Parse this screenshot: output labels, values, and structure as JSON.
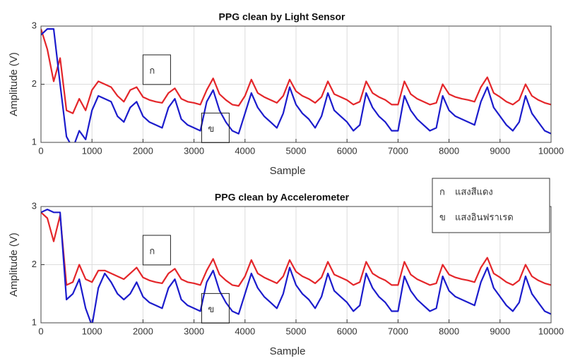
{
  "chart_data": [
    {
      "type": "line",
      "title": "PPG clean by Light Sensor",
      "xlabel": "Sample",
      "ylabel": "Amplitude (V)",
      "xlim": [
        0,
        10000
      ],
      "ylim": [
        1,
        3
      ],
      "xticks": [
        0,
        1000,
        2000,
        3000,
        4000,
        5000,
        6000,
        7000,
        8000,
        9000,
        10000
      ],
      "yticks": [
        1,
        2,
        3
      ],
      "grid": true,
      "annotations": [
        {
          "text": "ก",
          "x": 2000,
          "y": 2.25
        },
        {
          "text": "ข",
          "x": 3150,
          "y": 1.25
        }
      ],
      "x": [
        0,
        125,
        250,
        375,
        500,
        625,
        750,
        875,
        1000,
        1125,
        1250,
        1375,
        1500,
        1625,
        1750,
        1875,
        2000,
        2125,
        2250,
        2375,
        2500,
        2625,
        2750,
        2875,
        3000,
        3125,
        3250,
        3375,
        3500,
        3625,
        3750,
        3875,
        4000,
        4125,
        4250,
        4375,
        4500,
        4625,
        4750,
        4875,
        5000,
        5125,
        5250,
        5375,
        5500,
        5625,
        5750,
        5875,
        6000,
        6125,
        6250,
        6375,
        6500,
        6625,
        6750,
        6875,
        7000,
        7125,
        7250,
        7375,
        7500,
        7625,
        7750,
        7875,
        8000,
        8125,
        8250,
        8375,
        8500,
        8625,
        8750,
        8875,
        9000,
        9125,
        9250,
        9375,
        9500,
        9625,
        9750,
        9875,
        10000
      ],
      "series": [
        {
          "name": "แสงสีแดง",
          "color": "#e4262a",
          "values": [
            2.95,
            2.6,
            2.05,
            2.45,
            1.55,
            1.5,
            1.75,
            1.55,
            1.9,
            2.05,
            2.0,
            1.95,
            1.8,
            1.7,
            1.9,
            1.95,
            1.78,
            1.73,
            1.7,
            1.68,
            1.85,
            1.93,
            1.75,
            1.7,
            1.68,
            1.65,
            1.9,
            2.1,
            1.83,
            1.73,
            1.65,
            1.63,
            1.8,
            2.08,
            1.85,
            1.78,
            1.73,
            1.68,
            1.8,
            2.08,
            1.88,
            1.8,
            1.75,
            1.68,
            1.78,
            2.05,
            1.83,
            1.78,
            1.73,
            1.65,
            1.7,
            2.05,
            1.85,
            1.78,
            1.73,
            1.65,
            1.65,
            2.05,
            1.83,
            1.75,
            1.7,
            1.65,
            1.68,
            2.0,
            1.83,
            1.78,
            1.75,
            1.73,
            1.7,
            1.95,
            2.12,
            1.85,
            1.78,
            1.7,
            1.65,
            1.73,
            2.0,
            1.8,
            1.73,
            1.68,
            1.65
          ]
        },
        {
          "name": "แสงอินฟราเรด",
          "color": "#1c1ccc",
          "values": [
            2.85,
            2.95,
            2.95,
            2.0,
            1.1,
            0.9,
            1.2,
            1.05,
            1.55,
            1.8,
            1.75,
            1.7,
            1.45,
            1.35,
            1.6,
            1.7,
            1.45,
            1.35,
            1.3,
            1.25,
            1.6,
            1.75,
            1.4,
            1.3,
            1.25,
            1.2,
            1.7,
            1.9,
            1.55,
            1.35,
            1.2,
            1.15,
            1.5,
            1.85,
            1.6,
            1.45,
            1.35,
            1.25,
            1.5,
            1.95,
            1.65,
            1.5,
            1.4,
            1.25,
            1.45,
            1.85,
            1.55,
            1.45,
            1.35,
            1.2,
            1.3,
            1.85,
            1.6,
            1.45,
            1.35,
            1.2,
            1.2,
            1.8,
            1.55,
            1.4,
            1.3,
            1.2,
            1.25,
            1.8,
            1.55,
            1.45,
            1.4,
            1.35,
            1.3,
            1.7,
            1.95,
            1.6,
            1.45,
            1.3,
            1.2,
            1.35,
            1.8,
            1.5,
            1.35,
            1.2,
            1.15
          ]
        }
      ]
    },
    {
      "type": "line",
      "title": "PPG clean by Accelerometer",
      "xlabel": "Sample",
      "ylabel": "Amplitude (V)",
      "xlim": [
        0,
        10000
      ],
      "ylim": [
        1,
        3
      ],
      "xticks": [
        0,
        1000,
        2000,
        3000,
        4000,
        5000,
        6000,
        7000,
        8000,
        9000,
        10000
      ],
      "yticks": [
        1,
        2,
        3
      ],
      "grid": true,
      "legend": "northeast",
      "legend_keys": [
        "ก",
        "ข"
      ],
      "annotations": [
        {
          "text": "ก",
          "x": 2000,
          "y": 2.25
        },
        {
          "text": "ข",
          "x": 3150,
          "y": 1.25
        }
      ],
      "x": [
        0,
        125,
        250,
        375,
        500,
        625,
        750,
        875,
        1000,
        1125,
        1250,
        1375,
        1500,
        1625,
        1750,
        1875,
        2000,
        2125,
        2250,
        2375,
        2500,
        2625,
        2750,
        2875,
        3000,
        3125,
        3250,
        3375,
        3500,
        3625,
        3750,
        3875,
        4000,
        4125,
        4250,
        4375,
        4500,
        4625,
        4750,
        4875,
        5000,
        5125,
        5250,
        5375,
        5500,
        5625,
        5750,
        5875,
        6000,
        6125,
        6250,
        6375,
        6500,
        6625,
        6750,
        6875,
        7000,
        7125,
        7250,
        7375,
        7500,
        7625,
        7750,
        7875,
        8000,
        8125,
        8250,
        8375,
        8500,
        8625,
        8750,
        8875,
        9000,
        9125,
        9250,
        9375,
        9500,
        9625,
        9750,
        9875,
        10000
      ],
      "series": [
        {
          "name": "แสงสีแดง",
          "color": "#e4262a",
          "values": [
            2.9,
            2.8,
            2.4,
            2.85,
            1.65,
            1.7,
            2.0,
            1.75,
            1.7,
            1.9,
            1.9,
            1.85,
            1.8,
            1.75,
            1.85,
            1.95,
            1.78,
            1.73,
            1.7,
            1.68,
            1.85,
            1.93,
            1.75,
            1.7,
            1.68,
            1.65,
            1.9,
            2.1,
            1.83,
            1.73,
            1.65,
            1.63,
            1.8,
            2.08,
            1.85,
            1.78,
            1.73,
            1.68,
            1.8,
            2.08,
            1.88,
            1.8,
            1.75,
            1.68,
            1.78,
            2.05,
            1.83,
            1.78,
            1.73,
            1.65,
            1.7,
            2.05,
            1.85,
            1.78,
            1.73,
            1.65,
            1.65,
            2.05,
            1.83,
            1.75,
            1.7,
            1.65,
            1.68,
            2.0,
            1.83,
            1.78,
            1.75,
            1.73,
            1.7,
            1.95,
            2.12,
            1.85,
            1.78,
            1.7,
            1.65,
            1.73,
            2.0,
            1.8,
            1.73,
            1.68,
            1.65
          ]
        },
        {
          "name": "แสงอินฟราเรด",
          "color": "#1c1ccc",
          "values": [
            2.9,
            2.95,
            2.9,
            2.9,
            1.4,
            1.5,
            1.75,
            1.25,
            0.95,
            1.6,
            1.85,
            1.7,
            1.5,
            1.4,
            1.5,
            1.7,
            1.45,
            1.35,
            1.3,
            1.25,
            1.6,
            1.75,
            1.4,
            1.3,
            1.25,
            1.2,
            1.7,
            1.9,
            1.55,
            1.35,
            1.2,
            1.15,
            1.5,
            1.85,
            1.6,
            1.45,
            1.35,
            1.25,
            1.5,
            1.95,
            1.65,
            1.5,
            1.4,
            1.25,
            1.45,
            1.85,
            1.55,
            1.45,
            1.35,
            1.2,
            1.3,
            1.85,
            1.6,
            1.45,
            1.35,
            1.2,
            1.2,
            1.8,
            1.55,
            1.4,
            1.3,
            1.2,
            1.25,
            1.8,
            1.55,
            1.45,
            1.4,
            1.35,
            1.3,
            1.7,
            1.95,
            1.6,
            1.45,
            1.3,
            1.2,
            1.35,
            1.8,
            1.5,
            1.35,
            1.2,
            1.15
          ]
        }
      ]
    }
  ]
}
